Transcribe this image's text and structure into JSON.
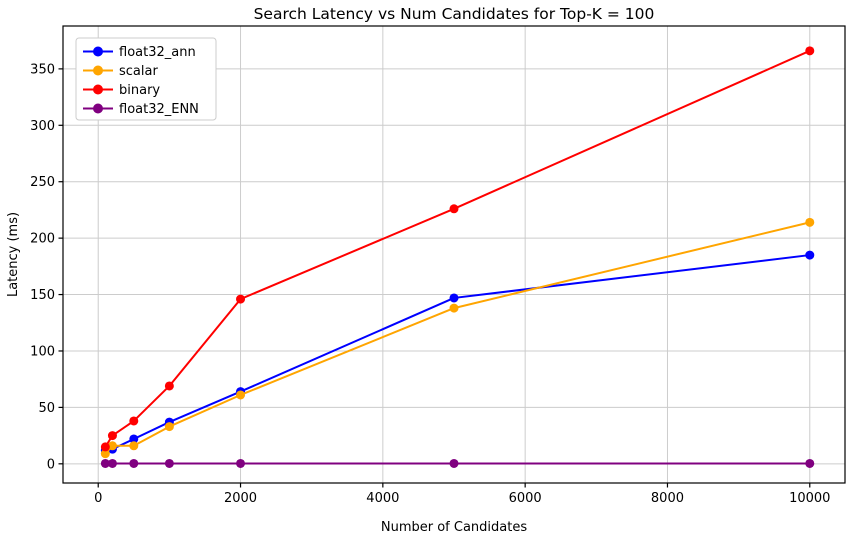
{
  "figure": {
    "title": "Search Latency vs Num Candidates for Top-K = 100",
    "xlabel": "Number of Candidates",
    "ylabel": "Latency (ms)"
  },
  "chart_data": {
    "type": "line",
    "title": "Search Latency vs Num Candidates for Top-K = 100",
    "xlabel": "Number of Candidates",
    "ylabel": "Latency (ms)",
    "x": [
      100,
      200,
      500,
      1000,
      2000,
      5000,
      10000
    ],
    "series": [
      {
        "name": "float32_ann",
        "color": "#0000ff",
        "values": [
          12,
          13,
          22,
          37,
          64,
          147,
          185
        ]
      },
      {
        "name": "scalar",
        "color": "#ffa500",
        "values": [
          9,
          16,
          16,
          33,
          61,
          138,
          214
        ]
      },
      {
        "name": "binary",
        "color": "#ff0000",
        "values": [
          15,
          25,
          38,
          69,
          146,
          226,
          366
        ]
      },
      {
        "name": "float32_ENN",
        "color": "#800080",
        "values": [
          0.3,
          0.3,
          0.3,
          0.3,
          0.3,
          0.3,
          0.3
        ]
      }
    ],
    "x_ticks": [
      0,
      2000,
      4000,
      6000,
      8000,
      10000
    ],
    "y_ticks": [
      0,
      50,
      100,
      150,
      200,
      250,
      300,
      350
    ],
    "xlim": [
      -495,
      10495
    ],
    "ylim": [
      -17,
      388
    ],
    "grid": true,
    "legend_position": "upper left",
    "grid_color": "#cccccc",
    "spine_color": "#000000",
    "legend_border_color": "#cccccc"
  }
}
